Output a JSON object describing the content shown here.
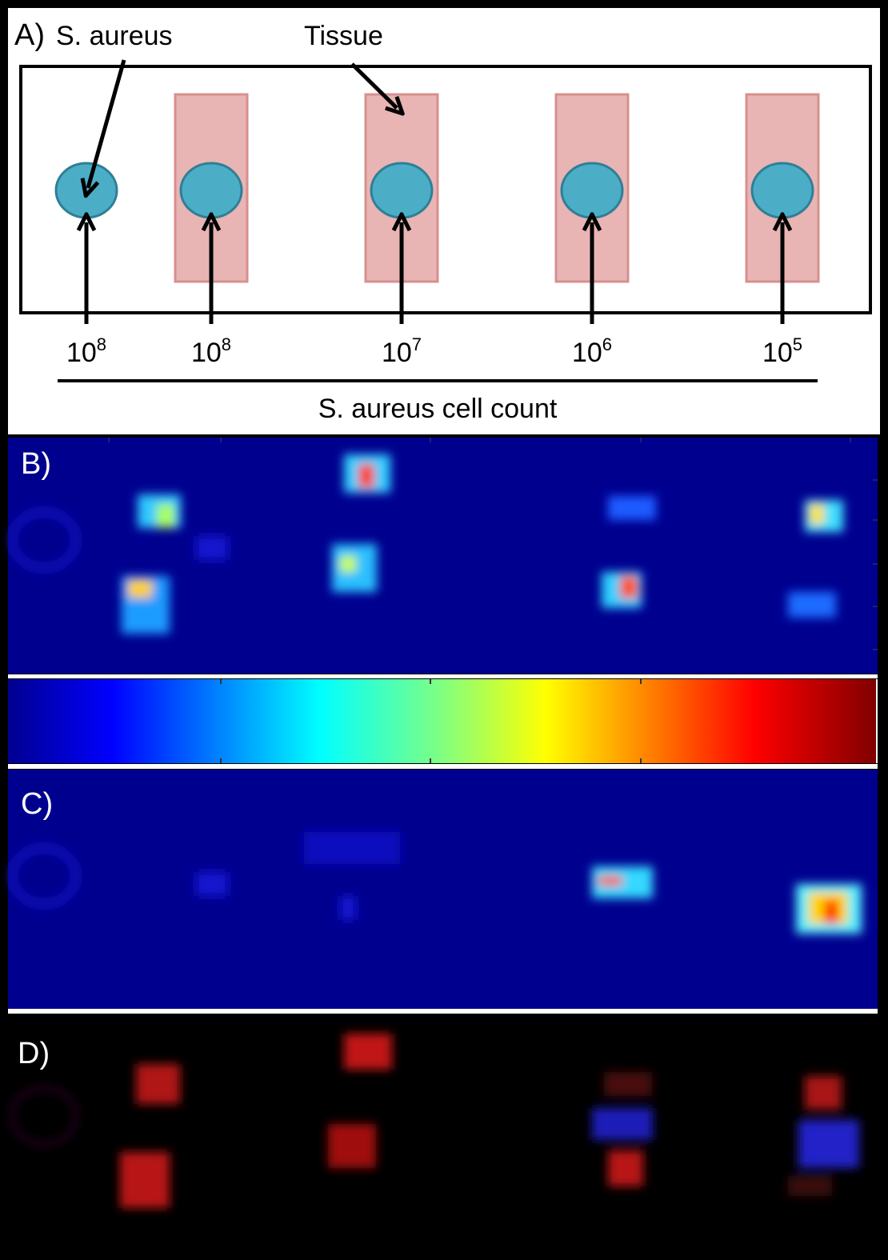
{
  "panel_a": {
    "label": "A)",
    "callout_bacteria": "S. aureus",
    "callout_tissue": "Tissue",
    "axis_title": "S. aureus cell count",
    "wells": [
      {
        "base": "10",
        "exp": "8",
        "tissue": false
      },
      {
        "base": "10",
        "exp": "8",
        "tissue": true
      },
      {
        "base": "10",
        "exp": "7",
        "tissue": true
      },
      {
        "base": "10",
        "exp": "6",
        "tissue": true
      },
      {
        "base": "10",
        "exp": "5",
        "tissue": true
      }
    ],
    "colors": {
      "tissue_fill": "#e8b4b4",
      "tissue_stroke": "#d88f8f",
      "well_fill": "#4baec6",
      "well_stroke": "#2f7f95"
    }
  },
  "panel_b": {
    "label": "B)"
  },
  "colorbar": {
    "colormap": "jet"
  },
  "panel_c": {
    "label": "C)"
  },
  "panel_d": {
    "label": "D)"
  },
  "colors": {
    "heatmap_bg": "#00008f",
    "frame": "#000000",
    "divider": "#ffffff"
  }
}
